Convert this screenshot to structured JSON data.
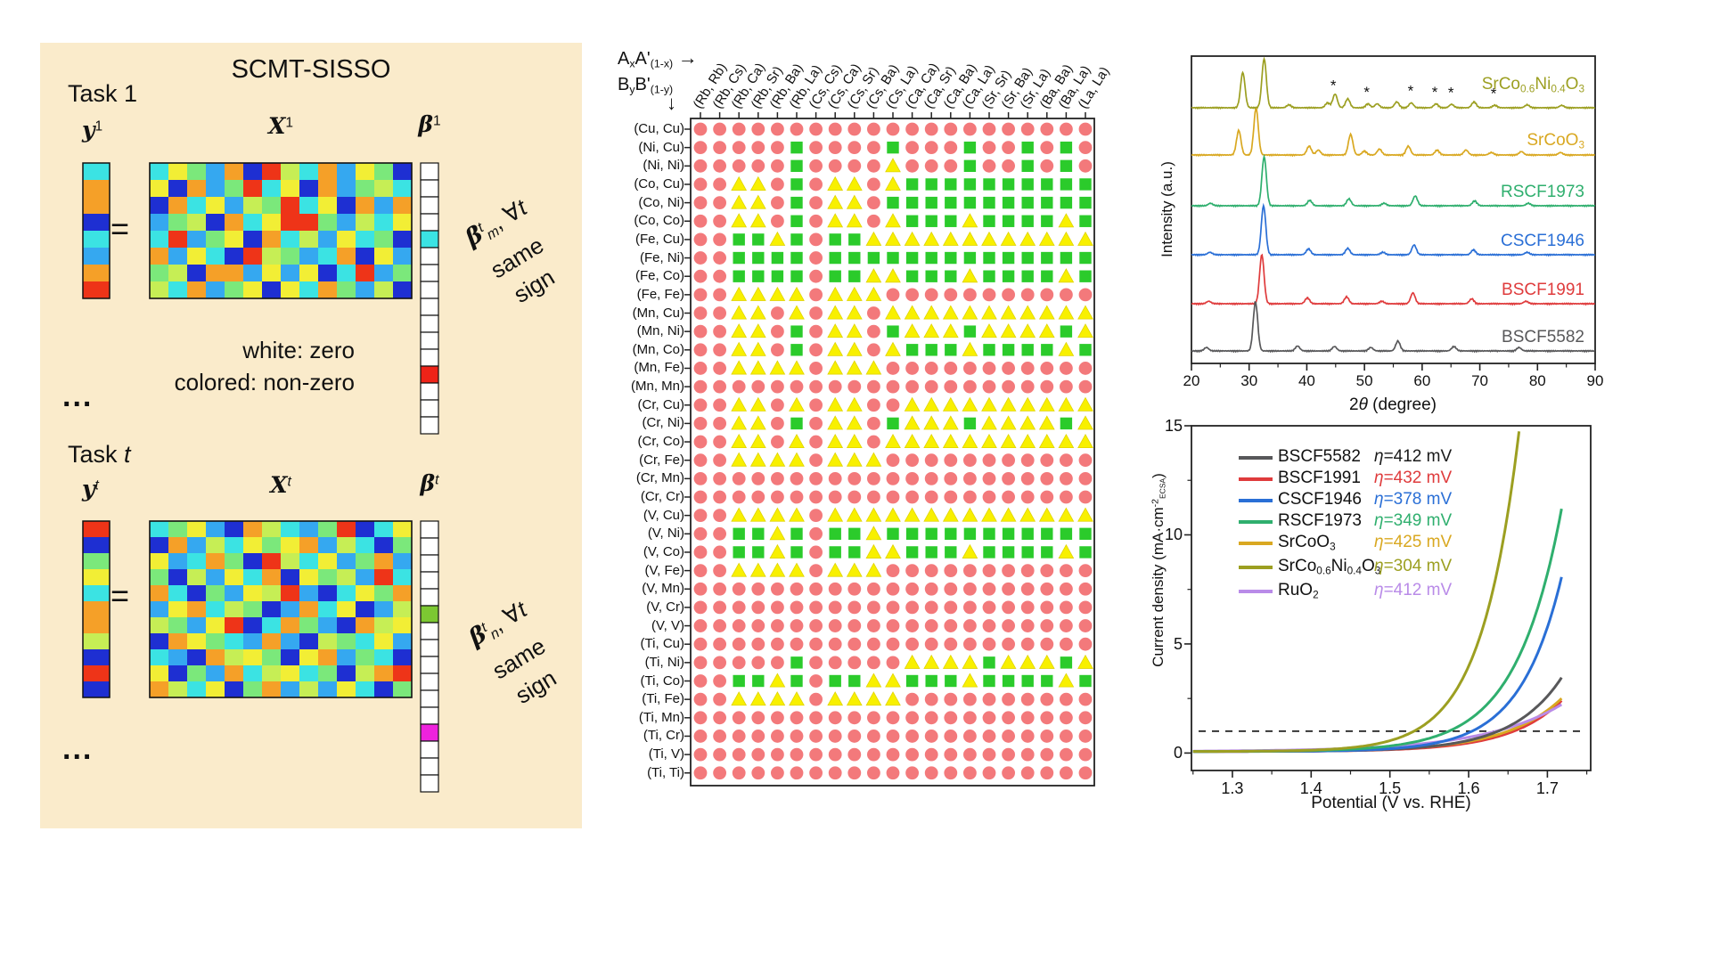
{
  "figure": {
    "background": "#ffffff",
    "panel_bg": "#FAEBCB"
  },
  "left_panel": {
    "title": "SCMT-SISSO",
    "task1_label": "Task 1",
    "taskt_label": [
      [
        "t",
        "Task "
      ],
      [
        "i",
        "t"
      ]
    ],
    "eq": "=",
    "ellipsis": "...",
    "note1": "white: zero",
    "note2": "colored: non-zero",
    "y1": [
      [
        "b",
        "y"
      ],
      [
        "u",
        "1"
      ]
    ],
    "X1": [
      [
        "b",
        "X"
      ],
      [
        "u",
        "1"
      ]
    ],
    "b1": [
      [
        "b",
        "β"
      ],
      [
        "u",
        "1"
      ]
    ],
    "yt": [
      [
        "b",
        "y"
      ],
      [
        "ui",
        "t"
      ]
    ],
    "Xt": [
      [
        "b",
        "X"
      ],
      [
        "ui",
        "t"
      ]
    ],
    "bt": [
      [
        "b",
        "β"
      ],
      [
        "ui",
        "t"
      ]
    ],
    "ann1": {
      "line1": [
        [
          "b",
          "β"
        ],
        [
          "ui",
          "t"
        ],
        [
          "si",
          "m"
        ],
        [
          "t",
          ", ∀"
        ],
        [
          "i",
          "t"
        ]
      ],
      "line2": "same",
      "line3": "sign"
    },
    "ann2": {
      "line1": [
        [
          "b",
          "β"
        ],
        [
          "ui",
          "t"
        ],
        [
          "si",
          "n"
        ],
        [
          "t",
          ", ∀"
        ],
        [
          "i",
          "t"
        ]
      ],
      "line2": "same",
      "line3": "sign"
    },
    "palette": [
      "#1E2FD2",
      "#35A8F0",
      "#3BE3E3",
      "#7BE87B",
      "#C6EE55",
      "#F2EE35",
      "#F5A028",
      "#EE3418"
    ],
    "y1_cells": "26602167",
    "X1_rows": [
      "25316074261530",
      "50613725061342",
      "06251437250616",
      "13406257731425",
      "27135062415230",
      "61520743126051",
      "34066151502713",
      "42613505263140"
    ],
    "yt_cells": "70352664070",
    "Xt_rows": [
      "23510642137025",
      "06142535614203",
      "51263074251361",
      "30415260534172",
      "62031547102536",
      "15624301625014",
      "43157026310645",
      "06532161043251",
      "21064530561320",
      "50316245230467",
      "64250361415203"
    ],
    "beta1": {
      "cells": 16,
      "colored": {
        "4": "#3BE3E3",
        "12": "#EE2318"
      }
    },
    "betat": {
      "cells": 16,
      "colored": {
        "5": "#7CC832",
        "12": "#EE22DD"
      }
    }
  },
  "matrix": {
    "formula_a": [
      [
        "t",
        "A"
      ],
      [
        "s",
        "x"
      ],
      [
        "t",
        "A'"
      ],
      [
        "s",
        "(1-x)"
      ]
    ],
    "formula_b": [
      [
        "t",
        "B"
      ],
      [
        "s",
        "y"
      ],
      [
        "t",
        "B'"
      ],
      [
        "s",
        "(1-y)"
      ]
    ],
    "arrow_right": "→",
    "arrow_down": "↓"
  },
  "chart_data": [
    {
      "type": "heatmap",
      "name": "ab-site-pair-classification-map",
      "x_axis_formula": "AxA'(1-x)",
      "y_axis_formula": "ByB'(1-y)",
      "x_categories": [
        "(Rb, Rb)",
        "(Rb, Cs)",
        "(Rb, Ca)",
        "(Rb, Sr)",
        "(Rb, Ba)",
        "(Rb, La)",
        "(Cs, Cs)",
        "(Cs, Ca)",
        "(Cs, Sr)",
        "(Cs, Ba)",
        "(Cs, La)",
        "(Ca, Ca)",
        "(Ca, Sr)",
        "(Ca, Ba)",
        "(Ca, La)",
        "(Sr, Sr)",
        "(Sr, Ba)",
        "(Sr, La)",
        "(Ba, Ba)",
        "(Ba, La)",
        "(La, La)"
      ],
      "y_categories": [
        "(Cu, Cu)",
        "(Ni, Cu)",
        "(Ni, Ni)",
        "(Co, Cu)",
        "(Co, Ni)",
        "(Co, Co)",
        "(Fe, Cu)",
        "(Fe, Ni)",
        "(Fe, Co)",
        "(Fe, Fe)",
        "(Mn, Cu)",
        "(Mn, Ni)",
        "(Mn, Co)",
        "(Mn, Fe)",
        "(Mn, Mn)",
        "(Cr, Cu)",
        "(Cr, Ni)",
        "(Cr, Co)",
        "(Cr, Fe)",
        "(Cr, Mn)",
        "(Cr, Cr)",
        "(V, Cu)",
        "(V, Ni)",
        "(V, Co)",
        "(V, Fe)",
        "(V, Mn)",
        "(V, Cr)",
        "(V, V)",
        "(Ti, Cu)",
        "(Ti, Ni)",
        "(Ti, Co)",
        "(Ti, Fe)",
        "(Ti, Mn)",
        "(Ti, Cr)",
        "(Ti, V)",
        "(Ti, Ti)"
      ],
      "cells": [
        "RRRRRRRRRRRRRRRRRRRRR",
        "RRRRRGRRRRGRRRGRRGRGR",
        "RRRRRGRRRRYRRRGRRGRGR",
        "RRYYRGRYYRYGGGGGGGGGG",
        "RRYYRGRYYRGGGGGGGGGGG",
        "RRYYRGRYYRYGGGYGGGGYG",
        "RRGGYGRGGYYYYYYYYYYYY",
        "RRGGGGRGGGGGGGGGGGGGG",
        "RRGGGGRGGYYGGGYGGGGYG",
        "RRYYYYRYYYRRRRRRRRRRR",
        "RRYYRYRYYRYYYYYYYYYYY",
        "RRYYRGRYYRGYYYGYYYYGY",
        "RRYYRGRYYRYGGGYGGGGYG",
        "RRYYYYRYYYRRRRRRRRRRR",
        "RRRRRRRRRRRRRRRRRRRRR",
        "RRYYRYRYYRRYYYYYYYYYY",
        "RRYYRGRYYRGYYYGYYYYGY",
        "RRYYRYRYYRYYYYYYYYYYY",
        "RRYYYYRYYYRRRRRRRRRRR",
        "RRRRRRRRRRRRRRRRRRRRR",
        "RRRRRRRRRRRRRRRRRRRRR",
        "RRYYYYRYYYYYYYYYYYYYY",
        "RRGGYGRGGYGGGGGGGGGGG",
        "RRGGYGRGGYYGGGYGGGGYG",
        "RRYYYYRYYYRRRRRRRRRRR",
        "RRRRRRRRRRRRRRRRRRRRR",
        "RRRRRRRRRRRRRRRRRRRRR",
        "RRRRRRRRRRRRRRRRRRRRR",
        "RRRRRRRRRRRRRRRRRRRRR",
        "RRRRRGRRRRRYYYYGYYYGY",
        "RRGGYGRGGYYGGGYGGGGYG",
        "RRYYYYRYYYYRRRRRRRRRR",
        "RRRRRRRRRRRRRRRRRRRRR",
        "RRRRRRRRRRRRRRRRRRRRR",
        "RRRRRRRRRRRRRRRRRRRRR",
        "RRRRRRRRRRRRRRRRRRRRR"
      ],
      "markers": {
        "R": {
          "shape": "circle",
          "color": "#F3797B"
        },
        "G": {
          "shape": "square",
          "color": "#2BCB2B"
        },
        "Y": {
          "shape": "triangle",
          "color": "#F8F000"
        }
      }
    },
    {
      "type": "line",
      "name": "xrd-patterns",
      "xlabel_segments": [
        [
          "t",
          "2"
        ],
        [
          "i",
          "θ"
        ],
        [
          "t",
          " (degree)"
        ]
      ],
      "ylabel": "Intensity (a.u.)",
      "xlim": [
        20,
        90
      ],
      "xticks": [
        20,
        30,
        40,
        50,
        60,
        70,
        80,
        90
      ],
      "asterisk": "*",
      "asterisks_2theta": [
        44.6,
        50.4,
        58.0,
        62.2,
        65.0,
        72.4
      ],
      "series": [
        {
          "label": "SrCo0.6Ni0.4O3",
          "segments": [
            [
              "t",
              "SrCo"
            ],
            [
              "s",
              "0.6"
            ],
            [
              "t",
              "Ni"
            ],
            [
              "s",
              "0.4"
            ],
            [
              "t",
              "O"
            ],
            [
              "s",
              "3"
            ]
          ],
          "color": "#9C9F21",
          "peaks": [
            [
              28.9,
              0.72
            ],
            [
              32.6,
              1.0
            ],
            [
              36.9,
              0.06
            ],
            [
              43.6,
              0.1
            ],
            [
              44.9,
              0.28
            ],
            [
              47.1,
              0.18
            ],
            [
              50.6,
              0.08
            ],
            [
              52.2,
              0.08
            ],
            [
              55.6,
              0.12
            ],
            [
              58.1,
              0.1
            ],
            [
              62.4,
              0.08
            ],
            [
              65.1,
              0.07
            ],
            [
              69.0,
              0.12
            ],
            [
              72.6,
              0.05
            ],
            [
              78.2,
              0.06
            ],
            [
              84.2,
              0.05
            ]
          ]
        },
        {
          "label": "SrCoO3",
          "segments": [
            [
              "t",
              "SrCoO"
            ],
            [
              "s",
              "3"
            ]
          ],
          "color": "#D9A821",
          "peaks": [
            [
              28.2,
              0.5
            ],
            [
              31.2,
              0.95
            ],
            [
              40.4,
              0.18
            ],
            [
              42.0,
              0.1
            ],
            [
              47.6,
              0.42
            ],
            [
              50.0,
              0.08
            ],
            [
              52.6,
              0.12
            ],
            [
              57.6,
              0.18
            ],
            [
              62.6,
              0.1
            ],
            [
              67.6,
              0.1
            ],
            [
              72.0,
              0.05
            ],
            [
              77.2,
              0.07
            ],
            [
              84.0,
              0.05
            ]
          ]
        },
        {
          "label": "RSCF1973",
          "segments": [
            [
              "t",
              "RSCF1973"
            ]
          ],
          "color": "#2FAF6E",
          "peaks": [
            [
              23.3,
              0.05
            ],
            [
              32.6,
              1.0
            ],
            [
              40.5,
              0.11
            ],
            [
              47.3,
              0.14
            ],
            [
              53.4,
              0.05
            ],
            [
              58.8,
              0.2
            ],
            [
              69.1,
              0.1
            ],
            [
              78.4,
              0.05
            ]
          ]
        },
        {
          "label": "CSCF1946",
          "segments": [
            [
              "t",
              "CSCF1946"
            ]
          ],
          "color": "#2A6FD6",
          "peaks": [
            [
              23.2,
              0.05
            ],
            [
              32.5,
              1.0
            ],
            [
              40.3,
              0.12
            ],
            [
              47.1,
              0.13
            ],
            [
              53.2,
              0.05
            ],
            [
              58.6,
              0.2
            ],
            [
              68.9,
              0.1
            ],
            [
              78.2,
              0.05
            ]
          ]
        },
        {
          "label": "BSCF1991",
          "segments": [
            [
              "t",
              "BSCF1991"
            ]
          ],
          "color": "#DF3B3C",
          "peaks": [
            [
              23.0,
              0.05
            ],
            [
              32.2,
              1.0
            ],
            [
              40.1,
              0.12
            ],
            [
              46.9,
              0.14
            ],
            [
              53.0,
              0.05
            ],
            [
              58.4,
              0.22
            ],
            [
              68.6,
              0.1
            ],
            [
              78.0,
              0.05
            ]
          ]
        },
        {
          "label": "BSCF5582",
          "segments": [
            [
              "t",
              "BSCF5582"
            ]
          ],
          "color": "#58585A",
          "peaks": [
            [
              22.6,
              0.07
            ],
            [
              31.1,
              1.0
            ],
            [
              38.4,
              0.1
            ],
            [
              44.8,
              0.09
            ],
            [
              51.1,
              0.07
            ],
            [
              55.8,
              0.2
            ],
            [
              65.5,
              0.09
            ],
            [
              76.8,
              0.07
            ]
          ]
        }
      ]
    },
    {
      "type": "line",
      "name": "oer-polarization-curves",
      "xlabel": "Potential (V vs. RHE)",
      "ylabel_segments": [
        [
          "t",
          "Current density (mA·cm"
        ],
        [
          "u",
          "-2"
        ],
        [
          "s2",
          "ECSA"
        ],
        [
          "t",
          ")"
        ]
      ],
      "xlim": [
        1.248,
        1.755
      ],
      "ylim": [
        -0.8,
        15
      ],
      "xticks": [
        1.3,
        1.4,
        1.5,
        1.6,
        1.7
      ],
      "yticks": [
        0,
        5,
        10,
        15
      ],
      "dashed_line_y": 1,
      "series": [
        {
          "label": "BSCF5582",
          "segments": [
            [
              "t",
              "BSCF5582"
            ]
          ],
          "color": "#58585A",
          "eta_segments": [
            [
              "i",
              "η"
            ],
            [
              "t",
              "=412 mV"
            ]
          ],
          "eta_color": "#1a1a1a",
          "V_at_1mA": 1.642,
          "k": 0.0623
        },
        {
          "label": "BSCF1991",
          "segments": [
            [
              "t",
              "BSCF1991"
            ]
          ],
          "color": "#DF3B3C",
          "eta_segments": [
            [
              "i",
              "η"
            ],
            [
              "t",
              "=432 mV"
            ]
          ],
          "eta_color": "#DF3B3C",
          "V_at_1mA": 1.662,
          "k": 0.0662
        },
        {
          "label": "CSCF1946",
          "segments": [
            [
              "t",
              "CSCF1946"
            ]
          ],
          "color": "#2A6FD6",
          "eta_segments": [
            [
              "i",
              "η"
            ],
            [
              "t",
              "=378 mV"
            ]
          ],
          "eta_color": "#2A6FD6",
          "V_at_1mA": 1.608,
          "k": 0.0529
        },
        {
          "label": "RSCF1973",
          "segments": [
            [
              "t",
              "RSCF1973"
            ]
          ],
          "color": "#2FAF6E",
          "eta_segments": [
            [
              "i",
              "η"
            ],
            [
              "t",
              "=349 mV"
            ]
          ],
          "eta_color": "#2FAF6E",
          "V_at_1mA": 1.579,
          "k": 0.0577
        },
        {
          "label": "SrCoO3",
          "segments": [
            [
              "t",
              "SrCoO"
            ],
            [
              "s",
              "3"
            ]
          ],
          "color": "#D9A821",
          "eta_segments": [
            [
              "i",
              "η"
            ],
            [
              "t",
              "=425 mV"
            ]
          ],
          "eta_color": "#D9A821",
          "V_at_1mA": 1.655,
          "k": 0.0709
        },
        {
          "label": "SrCo0.6Ni0.4O3",
          "segments": [
            [
              "t",
              "SrCo"
            ],
            [
              "s",
              "0.6"
            ],
            [
              "t",
              "Ni"
            ],
            [
              "s",
              "0.4"
            ],
            [
              "t",
              "O"
            ],
            [
              "s",
              "3"
            ]
          ],
          "color": "#9C9F21",
          "eta_segments": [
            [
              "i",
              "η"
            ],
            [
              "t",
              "=304 mV"
            ]
          ],
          "eta_color": "#9C9F21",
          "V_at_1mA": 1.534,
          "k": 0.0484
        },
        {
          "label": "RuO2",
          "segments": [
            [
              "t",
              "RuO"
            ],
            [
              "s",
              "2"
            ]
          ],
          "color": "#B98BE8",
          "eta_segments": [
            [
              "i",
              "η"
            ],
            [
              "t",
              "=412 mV"
            ]
          ],
          "eta_color": "#B98BE8",
          "V_at_1mA": 1.642,
          "k": 0.0989
        }
      ]
    }
  ]
}
